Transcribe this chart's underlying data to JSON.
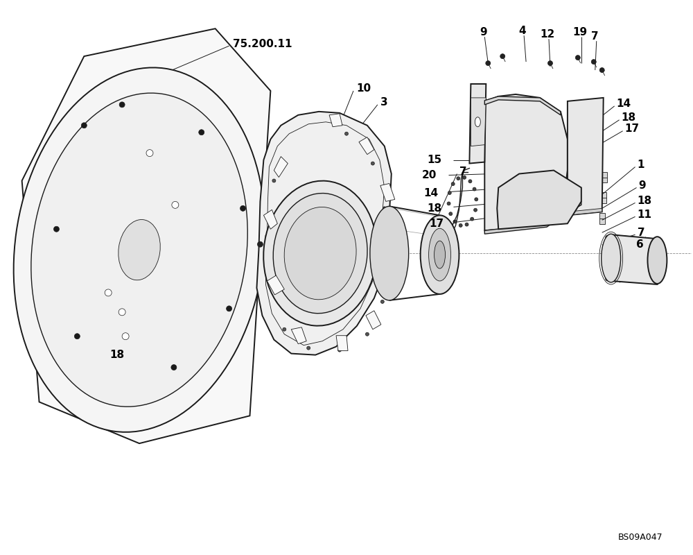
{
  "bg": "#ffffff",
  "lc": "#1a1a1a",
  "lw": 1.0,
  "lw_thin": 0.6,
  "lw_thick": 1.4,
  "watermark": "BS09A047",
  "fig_w": 10,
  "fig_h": 8,
  "dpi": 100
}
